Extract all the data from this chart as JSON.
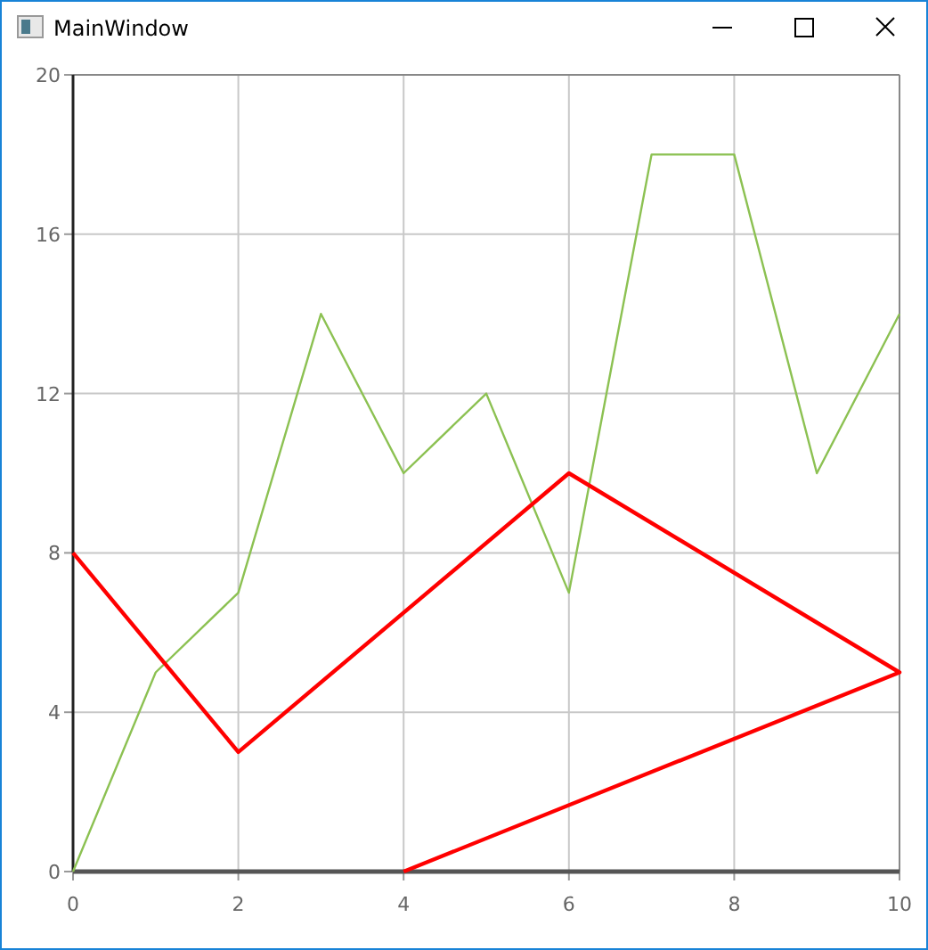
{
  "chart_data": {
    "type": "line",
    "title": "MainWindow",
    "xlim": [
      0,
      10
    ],
    "xticks": [
      0,
      2,
      4,
      6,
      8,
      10
    ],
    "ylim": [
      0,
      20
    ],
    "yticks": [
      0,
      4,
      8,
      12,
      16,
      20
    ],
    "grid": true,
    "marker": "none",
    "series": [
      {
        "color": "#8cc152",
        "x": [
          0,
          1,
          2,
          3,
          4,
          5,
          6,
          7,
          8,
          9,
          10
        ],
        "values": [
          0,
          5,
          7,
          14,
          10,
          12,
          7,
          18,
          18,
          10,
          14
        ]
      },
      {
        "color": "#ff0000",
        "x": [
          0,
          2,
          6,
          10,
          4
        ],
        "values": [
          8,
          3,
          10,
          5,
          0
        ]
      }
    ]
  }
}
